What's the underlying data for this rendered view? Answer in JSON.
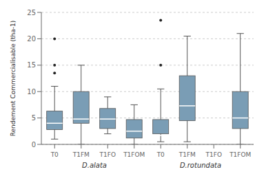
{
  "chart_data": {
    "type": "box",
    "ylabel": "Rendement Commercialisable (tha-1)",
    "categories": [
      "T0",
      "T1FM",
      "T1FO",
      "T1FOM"
    ],
    "groups": [
      {
        "name": "D.alata",
        "boxes": [
          {
            "q1": 2.8,
            "median": 4.0,
            "q3": 6.3,
            "whislo": 1.0,
            "whishi": 11.0,
            "fliers": [
              13.5,
              15.0,
              20.0
            ]
          },
          {
            "q1": 4.0,
            "median": 4.8,
            "q3": 10.0,
            "whislo": 0.0,
            "whishi": 15.0,
            "fliers": []
          },
          {
            "q1": 3.0,
            "median": 4.8,
            "q3": 6.8,
            "whislo": 2.0,
            "whishi": 9.0,
            "fliers": []
          },
          {
            "q1": 1.2,
            "median": 2.5,
            "q3": 4.7,
            "whislo": 0.0,
            "whishi": 7.5,
            "fliers": []
          }
        ]
      },
      {
        "name": "D.rotundata",
        "boxes": [
          {
            "q1": 2.0,
            "median": 1.7,
            "q3": 4.7,
            "whislo": 0.5,
            "whishi": 10.5,
            "fliers": [
              15.0,
              23.5
            ]
          },
          {
            "q1": 4.5,
            "median": 7.3,
            "q3": 13.0,
            "whislo": 0.5,
            "whishi": 20.5,
            "fliers": []
          },
          null,
          {
            "q1": 3.0,
            "median": 5.0,
            "q3": 10.0,
            "whislo": 0.0,
            "whishi": 21.0,
            "fliers": []
          }
        ]
      }
    ],
    "color": "#7a9db5",
    "ylim": [
      0,
      25
    ],
    "yticks": [
      0,
      5,
      10,
      15,
      20,
      25
    ],
    "grid": true
  }
}
